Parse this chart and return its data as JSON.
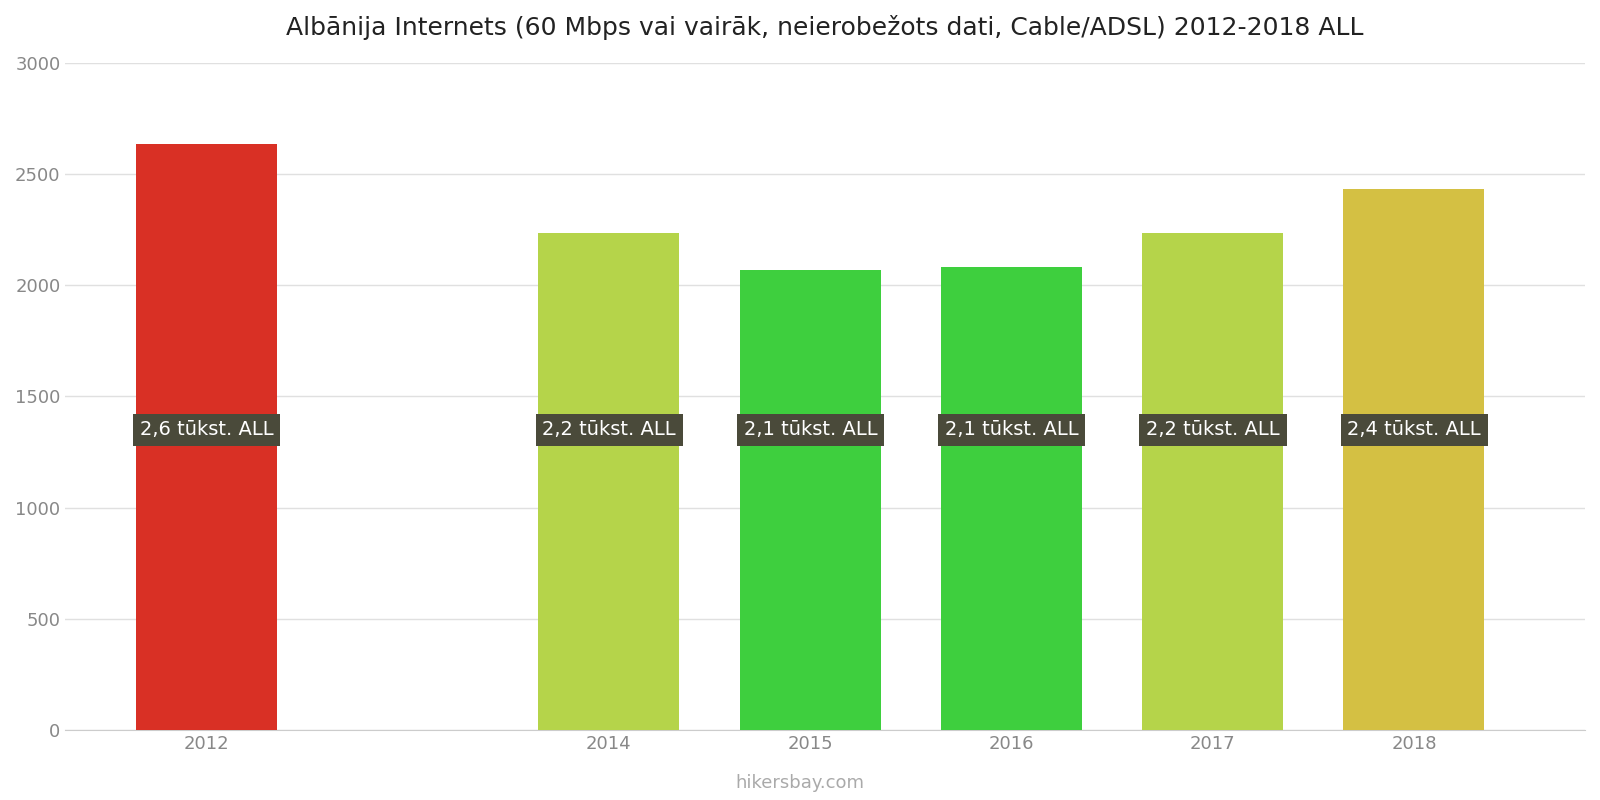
{
  "title": "Albānija Internets (60 Mbps vai vairāk, neierobežots dati, Cable/ADSL) 2012-2018 ALL",
  "years": [
    2012,
    2014,
    2015,
    2016,
    2017,
    2018
  ],
  "values": [
    2633,
    2233,
    2067,
    2083,
    2233,
    2433
  ],
  "bar_colors": [
    "#d93025",
    "#b5d44a",
    "#3ecf3e",
    "#3ecf3e",
    "#b5d44a",
    "#d4c043"
  ],
  "labels": [
    "2,6 tūkst. ALL",
    "2,2 tūkst. ALL",
    "2,1 tūkst. ALL",
    "2,1 tūkst. ALL",
    "2,2 tūkst. ALL",
    "2,4 tūkst. ALL"
  ],
  "label_bg_color": "#4a4a3a",
  "label_text_color": "#ffffff",
  "ylim": [
    0,
    3000
  ],
  "yticks": [
    0,
    500,
    1000,
    1500,
    2000,
    2500,
    3000
  ],
  "watermark": "hikersbay.com",
  "bg_color": "#ffffff",
  "grid_color": "#e0e0e0",
  "title_fontsize": 18,
  "label_fontsize": 14,
  "tick_fontsize": 13,
  "watermark_fontsize": 13
}
